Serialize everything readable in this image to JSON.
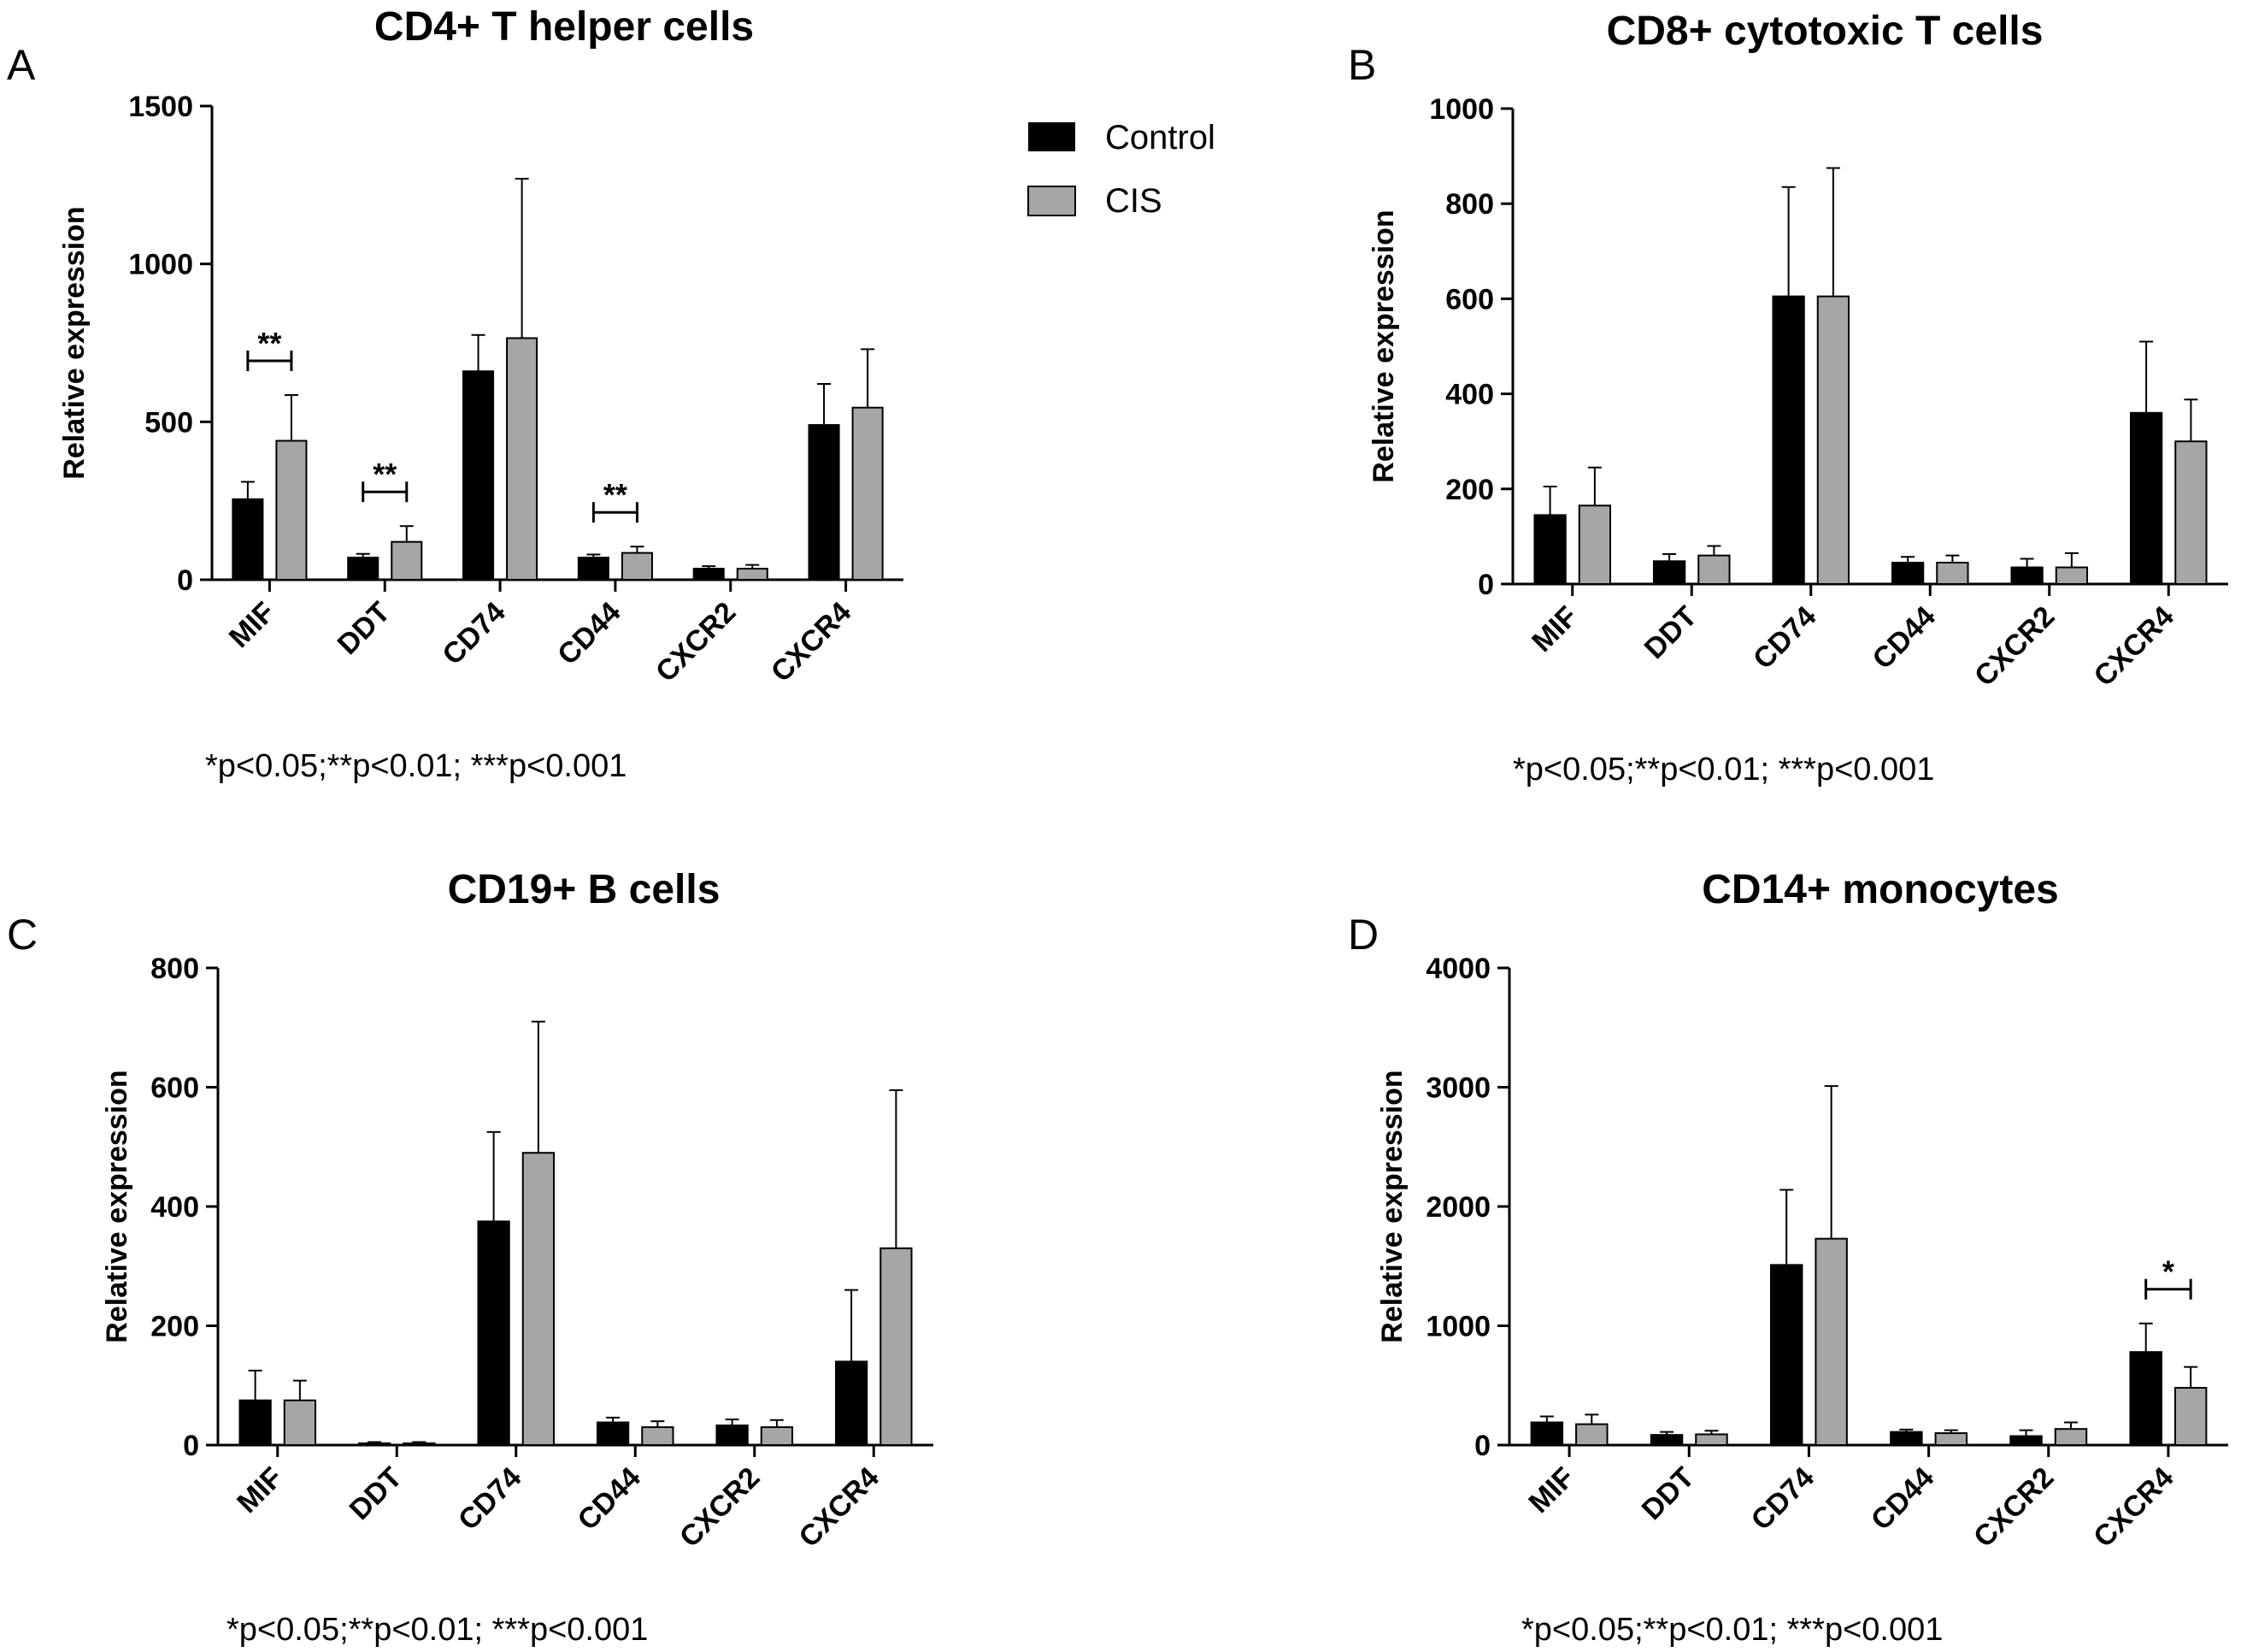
{
  "legend": {
    "items": [
      {
        "label": "Control",
        "color": "#000000"
      },
      {
        "label": "CIS",
        "color": "#a6a6a6"
      }
    ]
  },
  "chart_data": [
    {
      "type": "bar",
      "panel": "A",
      "title": "CD4+ T helper cells",
      "ylabel": "Relative expression",
      "xlabel": "",
      "ylim": [
        0,
        1500
      ],
      "yticks": [
        0,
        500,
        1000,
        1500
      ],
      "categories": [
        "MIF",
        "DDT",
        "CD74",
        "CD44",
        "CXCR2",
        "CXCR4"
      ],
      "series": [
        {
          "name": "Control",
          "values": [
            255,
            70,
            660,
            70,
            35,
            490
          ],
          "error": [
            55,
            12,
            115,
            10,
            8,
            130
          ]
        },
        {
          "name": "CIS",
          "values": [
            440,
            120,
            765,
            85,
            35,
            545
          ],
          "error": [
            145,
            50,
            505,
            20,
            12,
            185
          ]
        }
      ],
      "significance": [
        {
          "category": "MIF",
          "label": "**"
        },
        {
          "category": "DDT",
          "label": "**"
        },
        {
          "category": "CD44",
          "label": "**"
        }
      ],
      "footnote": "*p<0.05;**p<0.01; ***p<0.001"
    },
    {
      "type": "bar",
      "panel": "B",
      "title": "CD8+ cytotoxic T cells",
      "ylabel": "Relative expression",
      "xlabel": "",
      "ylim": [
        0,
        1000
      ],
      "yticks": [
        0,
        200,
        400,
        600,
        800,
        1000
      ],
      "categories": [
        "MIF",
        "DDT",
        "CD74",
        "CD44",
        "CXCR2",
        "CXCR4"
      ],
      "series": [
        {
          "name": "Control",
          "values": [
            145,
            48,
            605,
            45,
            35,
            360
          ],
          "error": [
            60,
            15,
            230,
            12,
            18,
            150
          ]
        },
        {
          "name": "CIS",
          "values": [
            165,
            60,
            605,
            45,
            35,
            300
          ],
          "error": [
            80,
            20,
            270,
            15,
            30,
            88
          ]
        }
      ],
      "significance": [],
      "footnote": "*p<0.05;**p<0.01; ***p<0.001"
    },
    {
      "type": "bar",
      "panel": "C",
      "title": "CD19+ B cells",
      "ylabel": "Relative expression",
      "xlabel": "",
      "ylim": [
        0,
        800
      ],
      "yticks": [
        0,
        200,
        400,
        600,
        800
      ],
      "categories": [
        "MIF",
        "DDT",
        "CD74",
        "CD44",
        "CXCR2",
        "CXCR4"
      ],
      "series": [
        {
          "name": "Control",
          "values": [
            75,
            3,
            375,
            38,
            33,
            140
          ],
          "error": [
            50,
            2,
            150,
            8,
            10,
            120
          ]
        },
        {
          "name": "CIS",
          "values": [
            75,
            3,
            490,
            30,
            30,
            330
          ],
          "error": [
            33,
            2,
            220,
            10,
            12,
            265
          ]
        }
      ],
      "significance": [],
      "footnote": "*p<0.05;**p<0.01; ***p<0.001"
    },
    {
      "type": "bar",
      "panel": "D",
      "title": "CD14+ monocytes",
      "ylabel": "Relative expression",
      "xlabel": "",
      "ylim": [
        0,
        4000
      ],
      "yticks": [
        0,
        1000,
        2000,
        3000,
        4000
      ],
      "categories": [
        "MIF",
        "DDT",
        "CD74",
        "CD44",
        "CXCR2",
        "CXCR4"
      ],
      "series": [
        {
          "name": "Control",
          "values": [
            190,
            85,
            1510,
            110,
            75,
            780
          ],
          "error": [
            50,
            25,
            630,
            20,
            50,
            240
          ]
        },
        {
          "name": "CIS",
          "values": [
            175,
            90,
            1730,
            100,
            135,
            480
          ],
          "error": [
            80,
            30,
            1280,
            25,
            55,
            175
          ]
        }
      ],
      "significance": [
        {
          "category": "CXCR4",
          "label": "*"
        }
      ],
      "footnote": "*p<0.05;**p<0.01; ***p<0.001"
    }
  ]
}
